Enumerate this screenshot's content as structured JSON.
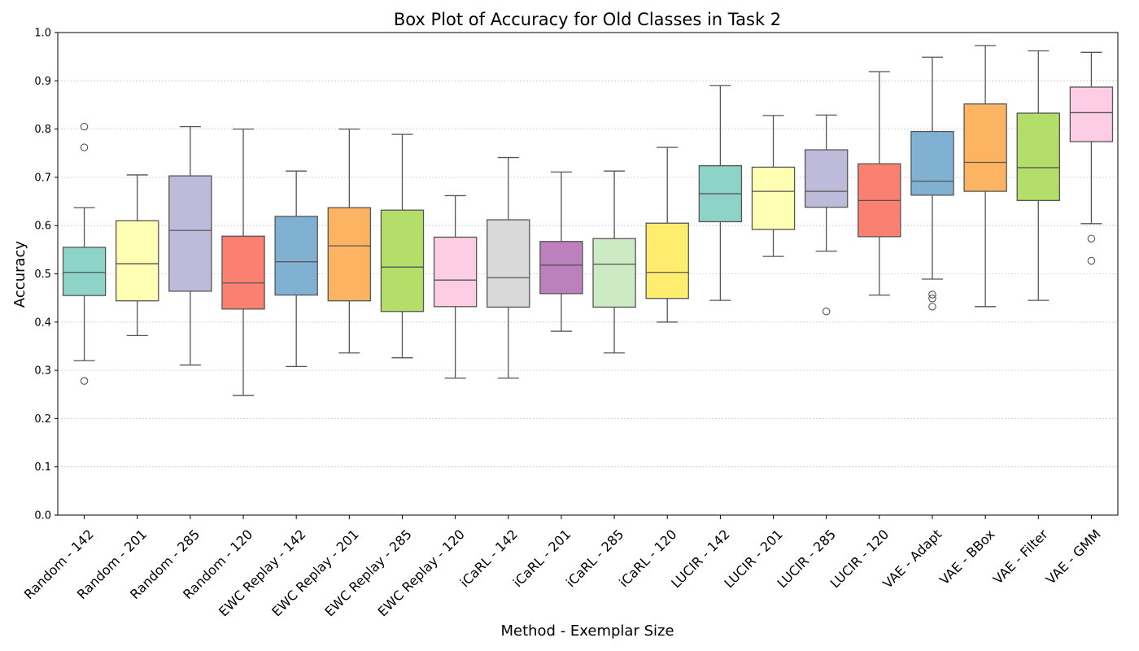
{
  "chart_data": {
    "type": "box",
    "title": "Box Plot of Accuracy for Old Classes in Task 2",
    "xlabel": "Method - Exemplar Size",
    "ylabel": "Accuracy",
    "ylim": [
      0.0,
      1.0
    ],
    "yticks": [
      "0.0",
      "0.1",
      "0.2",
      "0.3",
      "0.4",
      "0.5",
      "0.6",
      "0.7",
      "0.8",
      "0.9",
      "1.0"
    ],
    "grid": "horizontal dotted",
    "boxes": [
      {
        "category": "Random - 142",
        "whisker_low": 0.32,
        "q1": 0.455,
        "median": 0.503,
        "q3": 0.555,
        "whisker_high": 0.637,
        "outliers": [
          0.805,
          0.762,
          0.278
        ],
        "color": "#8dd3c7"
      },
      {
        "category": "Random - 201",
        "whisker_low": 0.372,
        "q1": 0.444,
        "median": 0.521,
        "q3": 0.61,
        "whisker_high": 0.705,
        "outliers": [],
        "color": "#ffffb3"
      },
      {
        "category": "Random - 285",
        "whisker_low": 0.311,
        "q1": 0.464,
        "median": 0.59,
        "q3": 0.703,
        "whisker_high": 0.805,
        "outliers": [],
        "color": "#bebada"
      },
      {
        "category": "Random - 120",
        "whisker_low": 0.248,
        "q1": 0.427,
        "median": 0.481,
        "q3": 0.578,
        "whisker_high": 0.8,
        "outliers": [],
        "color": "#fb8072"
      },
      {
        "category": "EWC Replay - 142",
        "whisker_low": 0.308,
        "q1": 0.456,
        "median": 0.525,
        "q3": 0.619,
        "whisker_high": 0.713,
        "outliers": [],
        "color": "#80b1d3"
      },
      {
        "category": "EWC Replay - 201",
        "whisker_low": 0.336,
        "q1": 0.444,
        "median": 0.558,
        "q3": 0.637,
        "whisker_high": 0.8,
        "outliers": [],
        "color": "#fdb462"
      },
      {
        "category": "EWC Replay - 285",
        "whisker_low": 0.326,
        "q1": 0.422,
        "median": 0.514,
        "q3": 0.632,
        "whisker_high": 0.789,
        "outliers": [],
        "color": "#b3de69"
      },
      {
        "category": "EWC Replay - 120",
        "whisker_low": 0.284,
        "q1": 0.432,
        "median": 0.487,
        "q3": 0.576,
        "whisker_high": 0.662,
        "outliers": [],
        "color": "#fccde5"
      },
      {
        "category": "iCaRL - 142",
        "whisker_low": 0.284,
        "q1": 0.431,
        "median": 0.492,
        "q3": 0.612,
        "whisker_high": 0.741,
        "outliers": [],
        "color": "#d9d9d9"
      },
      {
        "category": "iCaRL - 201",
        "whisker_low": 0.381,
        "q1": 0.459,
        "median": 0.518,
        "q3": 0.567,
        "whisker_high": 0.711,
        "outliers": [],
        "color": "#bc80bd"
      },
      {
        "category": "iCaRL - 285",
        "whisker_low": 0.336,
        "q1": 0.431,
        "median": 0.52,
        "q3": 0.573,
        "whisker_high": 0.713,
        "outliers": [],
        "color": "#ccebc5"
      },
      {
        "category": "iCaRL - 120",
        "whisker_low": 0.4,
        "q1": 0.449,
        "median": 0.503,
        "q3": 0.605,
        "whisker_high": 0.762,
        "outliers": [],
        "color": "#ffed6f"
      },
      {
        "category": "LUCIR - 142",
        "whisker_low": 0.445,
        "q1": 0.608,
        "median": 0.666,
        "q3": 0.724,
        "whisker_high": 0.89,
        "outliers": [],
        "color": "#8dd3c7"
      },
      {
        "category": "LUCIR - 201",
        "whisker_low": 0.536,
        "q1": 0.592,
        "median": 0.671,
        "q3": 0.721,
        "whisker_high": 0.828,
        "outliers": [],
        "color": "#ffffb3"
      },
      {
        "category": "LUCIR - 285",
        "whisker_low": 0.547,
        "q1": 0.638,
        "median": 0.671,
        "q3": 0.757,
        "whisker_high": 0.829,
        "outliers": [
          0.422
        ],
        "color": "#bebada"
      },
      {
        "category": "LUCIR - 120",
        "whisker_low": 0.456,
        "q1": 0.577,
        "median": 0.652,
        "q3": 0.728,
        "whisker_high": 0.919,
        "outliers": [],
        "color": "#fb8072"
      },
      {
        "category": "VAE - Adapt",
        "whisker_low": 0.489,
        "q1": 0.663,
        "median": 0.692,
        "q3": 0.795,
        "whisker_high": 0.949,
        "outliers": [
          0.457,
          0.449,
          0.432
        ],
        "color": "#80b1d3"
      },
      {
        "category": "VAE - BBox",
        "whisker_low": 0.432,
        "q1": 0.671,
        "median": 0.731,
        "q3": 0.852,
        "whisker_high": 0.973,
        "outliers": [],
        "color": "#fdb462"
      },
      {
        "category": "VAE - Filter",
        "whisker_low": 0.445,
        "q1": 0.652,
        "median": 0.72,
        "q3": 0.833,
        "whisker_high": 0.962,
        "outliers": [],
        "color": "#b3de69"
      },
      {
        "category": "VAE - GMM",
        "whisker_low": 0.604,
        "q1": 0.774,
        "median": 0.834,
        "q3": 0.887,
        "whisker_high": 0.959,
        "outliers": [
          0.573,
          0.527
        ],
        "color": "#fccde5"
      }
    ]
  }
}
